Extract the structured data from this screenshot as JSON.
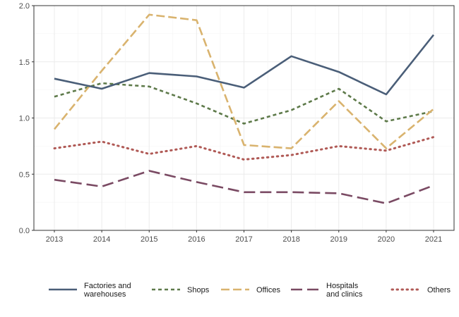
{
  "chart_data": {
    "type": "line",
    "title": "",
    "xlabel": "",
    "ylabel": "",
    "x": [
      2013,
      2014,
      2015,
      2016,
      2017,
      2018,
      2019,
      2020,
      2021
    ],
    "ylim": [
      0,
      2.0
    ],
    "yticks": [
      "0.0",
      "0.5",
      "1.0",
      "1.5",
      "2.0"
    ],
    "xticks": [
      "2013",
      "2014",
      "2015",
      "2016",
      "2017",
      "2018",
      "2019",
      "2020",
      "2021"
    ],
    "grid": true,
    "legend_position": "bottom",
    "series": [
      {
        "name": "Factories and warehouses",
        "label_lines": [
          "Factories and",
          "warehouses"
        ],
        "color": "#4a5e78",
        "dash": "solid",
        "values": [
          1.35,
          1.26,
          1.4,
          1.37,
          1.27,
          1.55,
          1.41,
          1.21,
          1.74
        ]
      },
      {
        "name": "Shops",
        "label_lines": [
          "Shops"
        ],
        "color": "#5e7a4a",
        "dash": "dashed-short",
        "values": [
          1.19,
          1.31,
          1.28,
          1.13,
          0.95,
          1.07,
          1.26,
          0.97,
          1.06
        ]
      },
      {
        "name": "Offices",
        "label_lines": [
          "Offices"
        ],
        "color": "#d9b36e",
        "dash": "dashed-long",
        "values": [
          0.9,
          1.42,
          1.92,
          1.87,
          0.76,
          0.73,
          1.15,
          0.73,
          1.08
        ]
      },
      {
        "name": "Hospitals and clinics",
        "label_lines": [
          "Hospitals",
          "and clinics"
        ],
        "color": "#7a4a63",
        "dash": "dashed-xlong",
        "values": [
          0.45,
          0.39,
          0.53,
          0.43,
          0.34,
          0.34,
          0.33,
          0.24,
          0.4
        ]
      },
      {
        "name": "Others",
        "label_lines": [
          "Others"
        ],
        "color": "#b05a56",
        "dash": "dotted",
        "values": [
          0.73,
          0.79,
          0.68,
          0.75,
          0.63,
          0.67,
          0.75,
          0.71,
          0.83
        ]
      }
    ]
  }
}
